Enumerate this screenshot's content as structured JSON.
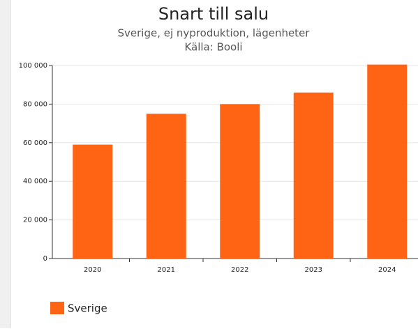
{
  "chart_data": {
    "type": "bar",
    "title": "Snart till salu",
    "subtitle": "Sverige, ej nyproduktion, lägenheter",
    "source": "Källa: Booli",
    "categories": [
      "2020",
      "2021",
      "2022",
      "2023",
      "2024"
    ],
    "series": [
      {
        "name": "Sverige",
        "color": "#ff6314",
        "values": [
          59000,
          75000,
          80000,
          86000,
          100500
        ]
      }
    ],
    "ylim": [
      0,
      100000
    ],
    "yticks": [
      0,
      {
        "value": 20000,
        "label": "20 000"
      },
      {
        "value": 40000,
        "label": "40 000"
      },
      {
        "value": 60000,
        "label": "60 000"
      },
      {
        "value": 80000,
        "label": "80 000"
      },
      {
        "value": 100000,
        "label": "100 000"
      }
    ],
    "grid": true,
    "legend": "bottom-left"
  }
}
